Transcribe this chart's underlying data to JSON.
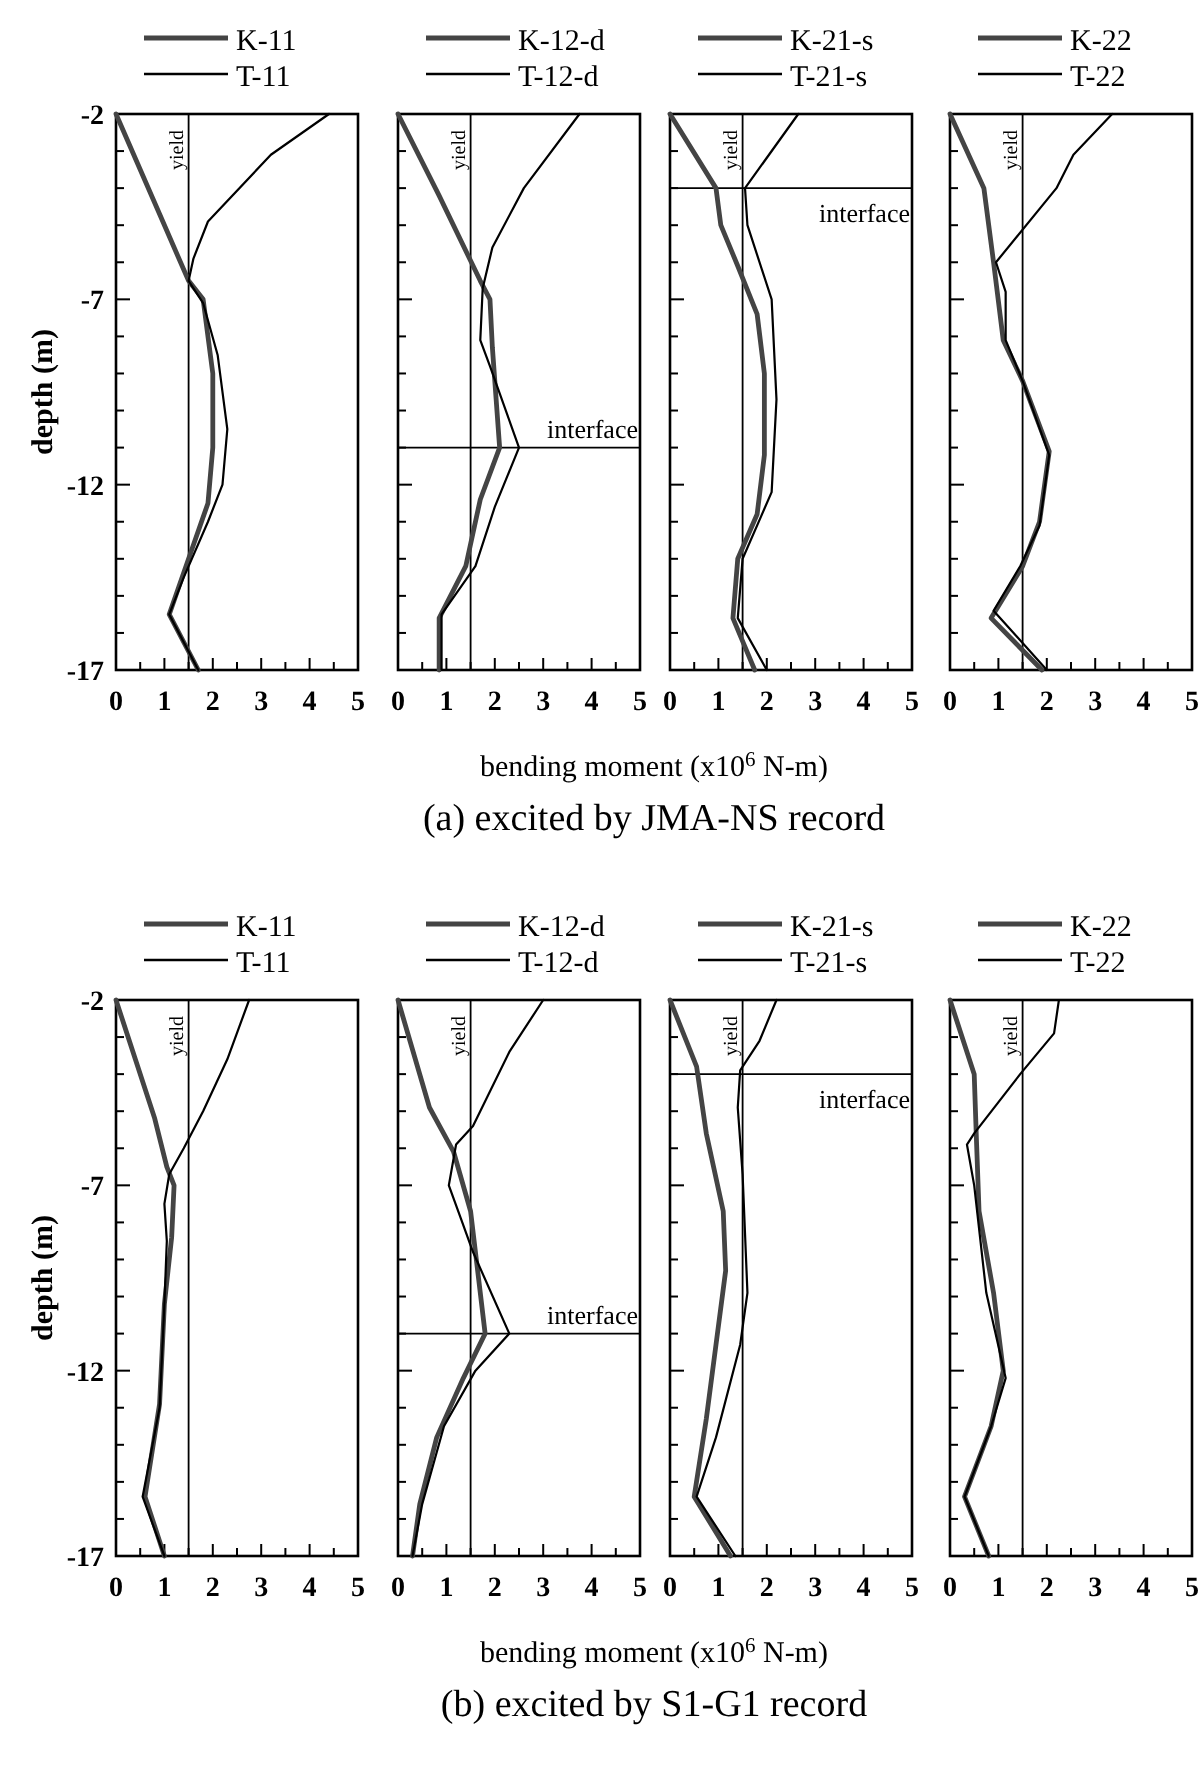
{
  "chart_data": [
    {
      "type": "line",
      "ylabel": "depth (m)",
      "xlabel": "bending moment (x10$^{6}$ N-m)",
      "annotations": [
        "(a) excited by JMA-NS record"
      ],
      "legend": "top",
      "xlim": [
        0,
        5
      ],
      "ylim": [
        -17,
        -2
      ],
      "xticks": [
        0,
        {
          "value": 0.5,
          "label": null
        },
        1,
        {
          "value": 1.5,
          "label": null
        },
        2,
        {
          "value": 2.5,
          "label": null
        },
        3,
        {
          "value": 3.5,
          "label": null
        },
        4,
        {
          "value": 4.5,
          "label": null
        },
        5
      ],
      "yticks": [
        -2,
        {
          "value": -3,
          "label": null
        },
        {
          "value": -4,
          "label": null
        },
        {
          "value": -5,
          "label": null
        },
        {
          "value": -6,
          "label": null
        },
        -7,
        {
          "value": -8,
          "label": null
        },
        {
          "value": -9,
          "label": null
        },
        {
          "value": -10,
          "label": null
        },
        {
          "value": -11,
          "label": null
        },
        -12,
        {
          "value": -13,
          "label": null
        },
        {
          "value": -14,
          "label": null
        },
        {
          "value": -15,
          "label": null
        },
        {
          "value": -16,
          "label": null
        },
        -17
      ],
      "ref_lines": [
        {
          "axis": "x",
          "value": 1.5,
          "label": "yield"
        }
      ],
      "series": [
        {
          "name": "K-11",
          "color": "#444444",
          "x": [
            0,
            0.9,
            1.5,
            1.8,
            2.0,
            2.0,
            1.9,
            1.5,
            1.1,
            1.7
          ],
          "values": [
            -2,
            -4.7,
            -6.5,
            -7,
            -9,
            -11,
            -12.5,
            -14,
            -15.5,
            -17
          ]
        },
        {
          "name": "T-11",
          "color": "#000000",
          "x": [
            4.4,
            3.2,
            1.9,
            1.6,
            1.5,
            1.8,
            2.1,
            2.3,
            2.2,
            1.9,
            1.4,
            1.1,
            1.7
          ],
          "values": [
            -2,
            -3.1,
            -4.9,
            -5.9,
            -6.5,
            -7.1,
            -8.5,
            -10.5,
            -12,
            -13,
            -14.5,
            -15.5,
            -17
          ]
        }
      ]
    },
    {
      "type": "line",
      "legend": "top",
      "tick_labels": "x",
      "xlim": [
        0,
        5
      ],
      "ylim": [
        -17,
        -2
      ],
      "xticks": [
        0,
        {
          "value": 0.5,
          "label": null
        },
        1,
        {
          "value": 1.5,
          "label": null
        },
        2,
        {
          "value": 2.5,
          "label": null
        },
        3,
        {
          "value": 3.5,
          "label": null
        },
        4,
        {
          "value": 4.5,
          "label": null
        },
        5
      ],
      "yticks": [
        -2,
        {
          "value": -3,
          "label": null
        },
        {
          "value": -4,
          "label": null
        },
        {
          "value": -5,
          "label": null
        },
        {
          "value": -6,
          "label": null
        },
        -7,
        {
          "value": -8,
          "label": null
        },
        {
          "value": -9,
          "label": null
        },
        {
          "value": -10,
          "label": null
        },
        {
          "value": -11,
          "label": null
        },
        -12,
        {
          "value": -13,
          "label": null
        },
        {
          "value": -14,
          "label": null
        },
        {
          "value": -15,
          "label": null
        },
        {
          "value": -16,
          "label": null
        },
        -17
      ],
      "ref_lines": [
        {
          "axis": "x",
          "value": 1.5,
          "label": "yield"
        },
        {
          "axis": "y",
          "value": -11,
          "label": "interface"
        }
      ],
      "series": [
        {
          "name": "K-12-d",
          "color": "#444444",
          "x": [
            0,
            0.85,
            1.7,
            1.9,
            1.95,
            2.1,
            1.7,
            1.4,
            0.85,
            0.85
          ],
          "values": [
            -2,
            -4.2,
            -6.5,
            -7,
            -8.3,
            -11,
            -12.4,
            -14.2,
            -15.6,
            -17
          ]
        },
        {
          "name": "T-12-d",
          "color": "#000000",
          "x": [
            3.75,
            2.6,
            1.95,
            1.75,
            1.7,
            1.9,
            2.5,
            2.0,
            1.6,
            0.9,
            0.9
          ],
          "values": [
            -2,
            -4,
            -5.6,
            -6.7,
            -8.1,
            -8.8,
            -11,
            -12.6,
            -14.2,
            -15.5,
            -17
          ]
        }
      ]
    },
    {
      "type": "line",
      "legend": "top",
      "tick_labels": "x",
      "xlim": [
        0,
        5
      ],
      "ylim": [
        -17,
        -2
      ],
      "xticks": [
        0,
        {
          "value": 0.5,
          "label": null
        },
        1,
        {
          "value": 1.5,
          "label": null
        },
        2,
        {
          "value": 2.5,
          "label": null
        },
        3,
        {
          "value": 3.5,
          "label": null
        },
        4,
        {
          "value": 4.5,
          "label": null
        },
        5
      ],
      "yticks": [
        -2,
        {
          "value": -3,
          "label": null
        },
        {
          "value": -4,
          "label": null
        },
        {
          "value": -5,
          "label": null
        },
        {
          "value": -6,
          "label": null
        },
        -7,
        {
          "value": -8,
          "label": null
        },
        {
          "value": -9,
          "label": null
        },
        {
          "value": -10,
          "label": null
        },
        {
          "value": -11,
          "label": null
        },
        -12,
        {
          "value": -13,
          "label": null
        },
        {
          "value": -14,
          "label": null
        },
        {
          "value": -15,
          "label": null
        },
        {
          "value": -16,
          "label": null
        },
        -17
      ],
      "ref_lines": [
        {
          "axis": "x",
          "value": 1.5,
          "label": "yield"
        },
        {
          "axis": "y",
          "value": -4,
          "label": "interface"
        }
      ],
      "series": [
        {
          "name": "K-21-s",
          "color": "#444444",
          "x": [
            0,
            0.95,
            1.05,
            1.4,
            1.8,
            1.95,
            1.95,
            1.8,
            1.4,
            1.3,
            1.75
          ],
          "values": [
            -2,
            -4,
            -5,
            -6.1,
            -7.4,
            -9,
            -11.2,
            -12.8,
            -14,
            -15.6,
            -17
          ]
        },
        {
          "name": "T-21-s",
          "color": "#000000",
          "x": [
            2.65,
            1.55,
            1.6,
            2.1,
            2.2,
            2.1,
            1.9,
            1.5,
            1.4,
            2.0
          ],
          "values": [
            -2,
            -4,
            -5,
            -7,
            -9.7,
            -12.2,
            -12.8,
            -14,
            -15.6,
            -17
          ]
        }
      ]
    },
    {
      "type": "line",
      "legend": "top",
      "tick_labels": "x",
      "xlim": [
        0,
        5
      ],
      "ylim": [
        -17,
        -2
      ],
      "xticks": [
        0,
        {
          "value": 0.5,
          "label": null
        },
        1,
        {
          "value": 1.5,
          "label": null
        },
        2,
        {
          "value": 2.5,
          "label": null
        },
        3,
        {
          "value": 3.5,
          "label": null
        },
        4,
        {
          "value": 4.5,
          "label": null
        },
        5
      ],
      "yticks": [
        -2,
        {
          "value": -3,
          "label": null
        },
        {
          "value": -4,
          "label": null
        },
        {
          "value": -5,
          "label": null
        },
        {
          "value": -6,
          "label": null
        },
        -7,
        {
          "value": -8,
          "label": null
        },
        {
          "value": -9,
          "label": null
        },
        {
          "value": -10,
          "label": null
        },
        {
          "value": -11,
          "label": null
        },
        -12,
        {
          "value": -13,
          "label": null
        },
        {
          "value": -14,
          "label": null
        },
        {
          "value": -15,
          "label": null
        },
        {
          "value": -16,
          "label": null
        },
        -17
      ],
      "ref_lines": [
        {
          "axis": "x",
          "value": 1.5,
          "label": "yield"
        }
      ],
      "series": [
        {
          "name": "K-22",
          "color": "#444444",
          "x": [
            0,
            0.7,
            0.9,
            1.1,
            1.5,
            2.05,
            1.85,
            1.5,
            0.85,
            1.9
          ],
          "values": [
            -2,
            -4,
            -6,
            -8.1,
            -9.2,
            -11.1,
            -13,
            -14.2,
            -15.6,
            -17
          ]
        },
        {
          "name": "T-22",
          "color": "#000000",
          "x": [
            3.35,
            2.55,
            2.2,
            0.95,
            1.15,
            1.15,
            1.5,
            2.05,
            1.85,
            1.45,
            0.9,
            2.0
          ],
          "values": [
            -2,
            -3.1,
            -4,
            -6,
            -6.8,
            -8.1,
            -9.2,
            -11.2,
            -13.1,
            -14.2,
            -15.4,
            -17
          ]
        }
      ]
    },
    {
      "type": "line",
      "ylabel": "depth (m)",
      "xlabel": "bending moment (x10$^{6}$ N-m)",
      "annotations": [
        "(b) excited by S1-G1 record"
      ],
      "legend": "top",
      "xlim": [
        0,
        5
      ],
      "ylim": [
        -17,
        -2
      ],
      "xticks": [
        0,
        {
          "value": 0.5,
          "label": null
        },
        1,
        {
          "value": 1.5,
          "label": null
        },
        2,
        {
          "value": 2.5,
          "label": null
        },
        3,
        {
          "value": 3.5,
          "label": null
        },
        4,
        {
          "value": 4.5,
          "label": null
        },
        5
      ],
      "yticks": [
        -2,
        {
          "value": -3,
          "label": null
        },
        {
          "value": -4,
          "label": null
        },
        {
          "value": -5,
          "label": null
        },
        {
          "value": -6,
          "label": null
        },
        -7,
        {
          "value": -8,
          "label": null
        },
        {
          "value": -9,
          "label": null
        },
        {
          "value": -10,
          "label": null
        },
        {
          "value": -11,
          "label": null
        },
        -12,
        {
          "value": -13,
          "label": null
        },
        {
          "value": -14,
          "label": null
        },
        {
          "value": -15,
          "label": null
        },
        {
          "value": -16,
          "label": null
        },
        -17
      ],
      "ref_lines": [
        {
          "axis": "x",
          "value": 1.5,
          "label": "yield"
        }
      ],
      "series": [
        {
          "name": "K-11",
          "color": "#444444",
          "x": [
            0,
            0.4,
            0.8,
            1.05,
            1.2,
            1.15,
            1.0,
            0.9,
            0.6,
            1.0
          ],
          "values": [
            -2,
            -3.6,
            -5.2,
            -6.5,
            -7,
            -8.4,
            -10.2,
            -12.9,
            -15.4,
            -17
          ]
        },
        {
          "name": "T-11",
          "color": "#000000",
          "x": [
            2.75,
            2.3,
            1.8,
            1.4,
            1.1,
            1.0,
            1.05,
            1.0,
            0.9,
            0.55,
            1.0
          ],
          "values": [
            -2,
            -3.6,
            -5,
            -6,
            -6.7,
            -7.5,
            -8.5,
            -10.2,
            -13,
            -15.4,
            -17
          ]
        }
      ]
    },
    {
      "type": "line",
      "legend": "top",
      "tick_labels": "x",
      "xlim": [
        0,
        5
      ],
      "ylim": [
        -17,
        -2
      ],
      "xticks": [
        0,
        {
          "value": 0.5,
          "label": null
        },
        1,
        {
          "value": 1.5,
          "label": null
        },
        2,
        {
          "value": 2.5,
          "label": null
        },
        3,
        {
          "value": 3.5,
          "label": null
        },
        4,
        {
          "value": 4.5,
          "label": null
        },
        5
      ],
      "yticks": [
        -2,
        {
          "value": -3,
          "label": null
        },
        {
          "value": -4,
          "label": null
        },
        {
          "value": -5,
          "label": null
        },
        {
          "value": -6,
          "label": null
        },
        -7,
        {
          "value": -8,
          "label": null
        },
        {
          "value": -9,
          "label": null
        },
        {
          "value": -10,
          "label": null
        },
        {
          "value": -11,
          "label": null
        },
        -12,
        {
          "value": -13,
          "label": null
        },
        {
          "value": -14,
          "label": null
        },
        {
          "value": -15,
          "label": null
        },
        {
          "value": -16,
          "label": null
        },
        -17
      ],
      "ref_lines": [
        {
          "axis": "x",
          "value": 1.5,
          "label": "yield"
        },
        {
          "axis": "y",
          "value": -11,
          "label": "interface"
        }
      ],
      "series": [
        {
          "name": "K-12-d",
          "color": "#444444",
          "x": [
            0,
            0.65,
            1.15,
            1.5,
            1.8,
            1.35,
            0.8,
            0.45,
            0.3
          ],
          "values": [
            -2,
            -4.9,
            -6.1,
            -7.7,
            -11,
            -12.2,
            -13.8,
            -15.6,
            -17
          ]
        },
        {
          "name": "T-12-d",
          "color": "#000000",
          "x": [
            3.0,
            2.3,
            1.55,
            1.2,
            1.05,
            1.3,
            1.55,
            2.3,
            1.6,
            0.95,
            0.5,
            0.3
          ],
          "values": [
            -2,
            -3.4,
            -5.4,
            -5.9,
            -7,
            -7.9,
            -8.8,
            -11,
            -12,
            -13.5,
            -15.6,
            -17
          ]
        }
      ]
    },
    {
      "type": "line",
      "legend": "top",
      "tick_labels": "x",
      "xlim": [
        0,
        5
      ],
      "ylim": [
        -17,
        -2
      ],
      "xticks": [
        0,
        {
          "value": 0.5,
          "label": null
        },
        1,
        {
          "value": 1.5,
          "label": null
        },
        2,
        {
          "value": 2.5,
          "label": null
        },
        3,
        {
          "value": 3.5,
          "label": null
        },
        4,
        {
          "value": 4.5,
          "label": null
        },
        5
      ],
      "yticks": [
        -2,
        {
          "value": -3,
          "label": null
        },
        {
          "value": -4,
          "label": null
        },
        {
          "value": -5,
          "label": null
        },
        {
          "value": -6,
          "label": null
        },
        -7,
        {
          "value": -8,
          "label": null
        },
        {
          "value": -9,
          "label": null
        },
        {
          "value": -10,
          "label": null
        },
        {
          "value": -11,
          "label": null
        },
        -12,
        {
          "value": -13,
          "label": null
        },
        {
          "value": -14,
          "label": null
        },
        {
          "value": -15,
          "label": null
        },
        {
          "value": -16,
          "label": null
        },
        -17
      ],
      "ref_lines": [
        {
          "axis": "x",
          "value": 1.5,
          "label": "yield"
        },
        {
          "axis": "y",
          "value": -4,
          "label": "interface"
        }
      ],
      "series": [
        {
          "name": "K-21-s",
          "color": "#444444",
          "x": [
            0,
            0.55,
            0.75,
            1.1,
            1.15,
            0.95,
            0.75,
            0.5,
            1.25
          ],
          "values": [
            -2,
            -3.8,
            -5.6,
            -7.7,
            -9.3,
            -11.3,
            -13.3,
            -15.4,
            -17
          ]
        },
        {
          "name": "T-21-s",
          "color": "#000000",
          "x": [
            2.2,
            1.85,
            1.45,
            1.4,
            1.5,
            1.6,
            1.45,
            0.95,
            0.55,
            1.35
          ],
          "values": [
            -2,
            -3.1,
            -3.9,
            -4.9,
            -6.7,
            -9.9,
            -11.3,
            -13.8,
            -15.4,
            -17
          ]
        }
      ]
    },
    {
      "type": "line",
      "legend": "top",
      "tick_labels": "x",
      "xlim": [
        0,
        5
      ],
      "ylim": [
        -17,
        -2
      ],
      "xticks": [
        0,
        {
          "value": 0.5,
          "label": null
        },
        1,
        {
          "value": 1.5,
          "label": null
        },
        2,
        {
          "value": 2.5,
          "label": null
        },
        3,
        {
          "value": 3.5,
          "label": null
        },
        4,
        {
          "value": 4.5,
          "label": null
        },
        5
      ],
      "yticks": [
        -2,
        {
          "value": -3,
          "label": null
        },
        {
          "value": -4,
          "label": null
        },
        {
          "value": -5,
          "label": null
        },
        {
          "value": -6,
          "label": null
        },
        -7,
        {
          "value": -8,
          "label": null
        },
        {
          "value": -9,
          "label": null
        },
        {
          "value": -10,
          "label": null
        },
        {
          "value": -11,
          "label": null
        },
        -12,
        {
          "value": -13,
          "label": null
        },
        {
          "value": -14,
          "label": null
        },
        {
          "value": -15,
          "label": null
        },
        {
          "value": -16,
          "label": null
        },
        -17
      ],
      "ref_lines": [
        {
          "axis": "x",
          "value": 1.5,
          "label": "yield"
        }
      ],
      "series": [
        {
          "name": "K-22",
          "color": "#444444",
          "x": [
            0,
            0.5,
            0.55,
            0.6,
            0.9,
            1.1,
            0.85,
            0.3,
            0.8
          ],
          "values": [
            -2,
            -4,
            -5.9,
            -7.7,
            -9.9,
            -12,
            -13.5,
            -15.4,
            -17
          ]
        },
        {
          "name": "T-22",
          "color": "#000000",
          "x": [
            2.25,
            2.15,
            1.45,
            0.5,
            0.35,
            0.5,
            0.75,
            1.15,
            0.85,
            0.3,
            0.8
          ],
          "values": [
            -2,
            -2.9,
            -4,
            -5.6,
            -5.9,
            -7,
            -9.9,
            -12.2,
            -13.5,
            -15.4,
            -17
          ]
        }
      ]
    }
  ]
}
